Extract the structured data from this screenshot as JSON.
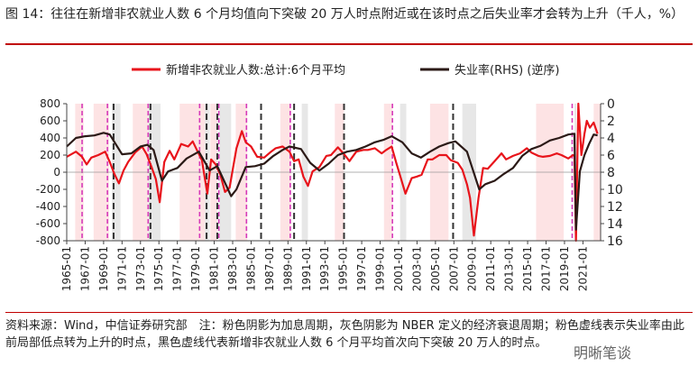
{
  "header": {
    "title": "图 14：往往在新增非农就业人数 6 个月均值向下突破 20 万人时点附近或在该时点之后失业率才会转为上升（千人，%）"
  },
  "footer": {
    "note": "资料来源：Wind，中信证券研究部　注：粉色阴影为加息周期，灰色阴影为 NBER 定义的经济衰退周期；粉色虚线表示失业率由此前局部低点转为上升的时点，黑色虚线代表新增非农就业人数 6 个月平均首次向下突破 20 万人的时点。",
    "watermark": "明晰笔谈"
  },
  "colors": {
    "payrolls": "#e8141b",
    "unemployment": "#2b1a17",
    "hike_shade": "#fde3e4",
    "recession_shade": "#e7e7e7",
    "pink_dash": "#d63ab9",
    "black_dash": "#333333"
  },
  "chart_data": {
    "type": "line",
    "legend": {
      "position": "top",
      "entries": [
        "新增非农就业人数:总计:6个月平均",
        "失业率(RHS) (逆序)"
      ]
    },
    "x_range": [
      "1965-01",
      "2022-12"
    ],
    "x_ticks": [
      "1965-01",
      "1967-01",
      "1969-01",
      "1971-01",
      "1973-01",
      "1975-01",
      "1977-01",
      "1979-01",
      "1981-01",
      "1983-01",
      "1985-01",
      "1987-01",
      "1989-01",
      "1991-01",
      "1993-01",
      "1995-01",
      "1997-01",
      "1999-01",
      "2001-01",
      "2003-01",
      "2005-01",
      "2007-01",
      "2009-01",
      "2011-01",
      "2013-01",
      "2015-01",
      "2017-01",
      "2019-01",
      "2021-01"
    ],
    "y_left": {
      "min": -800,
      "max": 800,
      "ticks": [
        "800",
        "600",
        "400",
        "200",
        "0",
        "-200",
        "-400",
        "-600",
        "-800"
      ]
    },
    "y_right": {
      "min": 0,
      "max": 16,
      "inverted": true,
      "ticks": [
        "0",
        "2",
        "4",
        "6",
        "8",
        "10",
        "12",
        "14",
        "16"
      ]
    },
    "hike_periods": [
      [
        "1965-12",
        "1966-11"
      ],
      [
        "1967-12",
        "1969-08"
      ],
      [
        "1972-03",
        "1974-07"
      ],
      [
        "1977-04",
        "1980-04"
      ],
      [
        "1980-08",
        "1981-05"
      ],
      [
        "1983-05",
        "1984-08"
      ],
      [
        "1988-03",
        "1989-05"
      ],
      [
        "1994-02",
        "1995-02"
      ],
      [
        "1999-06",
        "2000-05"
      ],
      [
        "2004-06",
        "2006-06"
      ],
      [
        "2015-12",
        "2018-12"
      ],
      [
        "2022-03",
        "2022-12"
      ]
    ],
    "recessions": [
      [
        "1969-12",
        "1970-11"
      ],
      [
        "1973-11",
        "1975-03"
      ],
      [
        "1980-01",
        "1980-07"
      ],
      [
        "1981-07",
        "1982-11"
      ],
      [
        "1990-07",
        "1991-03"
      ],
      [
        "2001-03",
        "2001-11"
      ],
      [
        "2007-12",
        "2009-06"
      ],
      [
        "2020-02",
        "2020-04"
      ]
    ],
    "pink_dashed": [
      "1966-09",
      "1969-06",
      "1973-11",
      "1979-06",
      "1981-07",
      "1984-07",
      "1989-04",
      "2000-05",
      "2019-11"
    ],
    "black_dashed": [
      "1970-02",
      "1974-02",
      "1980-03",
      "1981-05",
      "1986-02",
      "1989-09",
      "1995-02",
      "2006-12"
    ],
    "series": [
      {
        "name": "新增非农就业人数:总计:6个月平均",
        "axis": "left",
        "points": [
          [
            "1965-01",
            180
          ],
          [
            "1966-01",
            240
          ],
          [
            "1966-09",
            180
          ],
          [
            "1967-03",
            90
          ],
          [
            "1967-09",
            170
          ],
          [
            "1968-06",
            200
          ],
          [
            "1969-03",
            240
          ],
          [
            "1969-09",
            120
          ],
          [
            "1970-03",
            -20
          ],
          [
            "1970-09",
            -130
          ],
          [
            "1971-03",
            20
          ],
          [
            "1971-09",
            120
          ],
          [
            "1972-06",
            230
          ],
          [
            "1973-03",
            300
          ],
          [
            "1973-09",
            210
          ],
          [
            "1974-03",
            70
          ],
          [
            "1974-09",
            -80
          ],
          [
            "1975-02",
            -350
          ],
          [
            "1975-08",
            120
          ],
          [
            "1976-03",
            250
          ],
          [
            "1976-09",
            150
          ],
          [
            "1977-06",
            330
          ],
          [
            "1978-03",
            300
          ],
          [
            "1978-09",
            360
          ],
          [
            "1979-03",
            250
          ],
          [
            "1979-09",
            140
          ],
          [
            "1980-04",
            -250
          ],
          [
            "1980-09",
            150
          ],
          [
            "1981-03",
            90
          ],
          [
            "1981-09",
            -30
          ],
          [
            "1982-03",
            -230
          ],
          [
            "1982-09",
            -180
          ],
          [
            "1983-06",
            280
          ],
          [
            "1984-01",
            480
          ],
          [
            "1984-06",
            350
          ],
          [
            "1985-01",
            300
          ],
          [
            "1985-09",
            180
          ],
          [
            "1986-06",
            170
          ],
          [
            "1987-03",
            240
          ],
          [
            "1987-09",
            280
          ],
          [
            "1988-06",
            300
          ],
          [
            "1989-03",
            240
          ],
          [
            "1989-09",
            130
          ],
          [
            "1990-03",
            150
          ],
          [
            "1990-09",
            -50
          ],
          [
            "1991-03",
            -160
          ],
          [
            "1991-09",
            10
          ],
          [
            "1992-06",
            60
          ],
          [
            "1993-03",
            190
          ],
          [
            "1993-09",
            200
          ],
          [
            "1994-06",
            290
          ],
          [
            "1995-03",
            200
          ],
          [
            "1995-09",
            130
          ],
          [
            "1996-06",
            240
          ],
          [
            "1997-03",
            260
          ],
          [
            "1997-09",
            260
          ],
          [
            "1998-06",
            280
          ],
          [
            "1999-03",
            220
          ],
          [
            "1999-09",
            260
          ],
          [
            "2000-04",
            300
          ],
          [
            "2000-10",
            110
          ],
          [
            "2001-03",
            -40
          ],
          [
            "2001-10",
            -250
          ],
          [
            "2002-06",
            -70
          ],
          [
            "2003-01",
            -50
          ],
          [
            "2003-07",
            -30
          ],
          [
            "2004-03",
            150
          ],
          [
            "2004-09",
            150
          ],
          [
            "2005-06",
            200
          ],
          [
            "2006-03",
            200
          ],
          [
            "2006-09",
            140
          ],
          [
            "2007-06",
            110
          ],
          [
            "2007-12",
            30
          ],
          [
            "2008-06",
            -140
          ],
          [
            "2008-10",
            -300
          ],
          [
            "2009-03",
            -740
          ],
          [
            "2009-09",
            -300
          ],
          [
            "2010-03",
            50
          ],
          [
            "2010-09",
            40
          ],
          [
            "2011-06",
            130
          ],
          [
            "2012-03",
            220
          ],
          [
            "2012-09",
            150
          ],
          [
            "2013-06",
            190
          ],
          [
            "2014-03",
            220
          ],
          [
            "2014-12",
            280
          ],
          [
            "2015-06",
            230
          ],
          [
            "2016-03",
            190
          ],
          [
            "2016-09",
            180
          ],
          [
            "2017-06",
            190
          ],
          [
            "2018-03",
            220
          ],
          [
            "2018-09",
            200
          ],
          [
            "2019-06",
            160
          ],
          [
            "2019-12",
            200
          ],
          [
            "2020-02",
            190
          ],
          [
            "2020-04",
            -800
          ],
          [
            "2020-07",
            800
          ],
          [
            "2020-11",
            200
          ],
          [
            "2021-03",
            450
          ],
          [
            "2021-06",
            600
          ],
          [
            "2021-10",
            520
          ],
          [
            "2022-03",
            580
          ],
          [
            "2022-08",
            450
          ]
        ]
      },
      {
        "name": "失业率(RHS) (逆序)",
        "axis": "right",
        "points": [
          [
            "1965-01",
            5.0
          ],
          [
            "1966-01",
            4.0
          ],
          [
            "1967-01",
            3.8
          ],
          [
            "1968-01",
            3.7
          ],
          [
            "1969-01",
            3.4
          ],
          [
            "1969-09",
            3.6
          ],
          [
            "1970-06",
            4.9
          ],
          [
            "1971-01",
            5.9
          ],
          [
            "1972-01",
            5.8
          ],
          [
            "1973-01",
            5.0
          ],
          [
            "1973-10",
            4.8
          ],
          [
            "1974-06",
            5.4
          ],
          [
            "1975-05",
            9.0
          ],
          [
            "1976-01",
            7.9
          ],
          [
            "1977-01",
            7.5
          ],
          [
            "1978-01",
            6.4
          ],
          [
            "1979-05",
            5.6
          ],
          [
            "1980-07",
            7.8
          ],
          [
            "1981-05",
            7.3
          ],
          [
            "1982-11",
            10.8
          ],
          [
            "1983-06",
            10.0
          ],
          [
            "1984-06",
            7.4
          ],
          [
            "1985-06",
            7.3
          ],
          [
            "1986-06",
            7.0
          ],
          [
            "1987-06",
            6.1
          ],
          [
            "1988-06",
            5.4
          ],
          [
            "1989-03",
            5.0
          ],
          [
            "1990-06",
            5.3
          ],
          [
            "1991-06",
            6.9
          ],
          [
            "1992-06",
            7.8
          ],
          [
            "1993-06",
            7.0
          ],
          [
            "1994-06",
            6.0
          ],
          [
            "1995-06",
            5.6
          ],
          [
            "1996-06",
            5.4
          ],
          [
            "1997-06",
            5.0
          ],
          [
            "1998-06",
            4.5
          ],
          [
            "1999-06",
            4.2
          ],
          [
            "2000-04",
            3.8
          ],
          [
            "2001-06",
            4.5
          ],
          [
            "2002-06",
            5.8
          ],
          [
            "2003-06",
            6.3
          ],
          [
            "2004-06",
            5.6
          ],
          [
            "2005-06",
            5.0
          ],
          [
            "2006-06",
            4.6
          ],
          [
            "2007-03",
            4.4
          ],
          [
            "2008-06",
            5.6
          ],
          [
            "2009-10",
            10.0
          ],
          [
            "2010-06",
            9.4
          ],
          [
            "2011-06",
            9.0
          ],
          [
            "2012-06",
            8.2
          ],
          [
            "2013-06",
            7.5
          ],
          [
            "2014-06",
            6.1
          ],
          [
            "2015-06",
            5.3
          ],
          [
            "2016-06",
            4.9
          ],
          [
            "2017-06",
            4.3
          ],
          [
            "2018-06",
            4.0
          ],
          [
            "2019-06",
            3.6
          ],
          [
            "2020-02",
            3.5
          ],
          [
            "2020-04",
            14.7
          ],
          [
            "2020-09",
            7.9
          ],
          [
            "2021-03",
            6.0
          ],
          [
            "2021-09",
            4.7
          ],
          [
            "2022-03",
            3.6
          ],
          [
            "2022-08",
            3.7
          ]
        ]
      }
    ]
  }
}
